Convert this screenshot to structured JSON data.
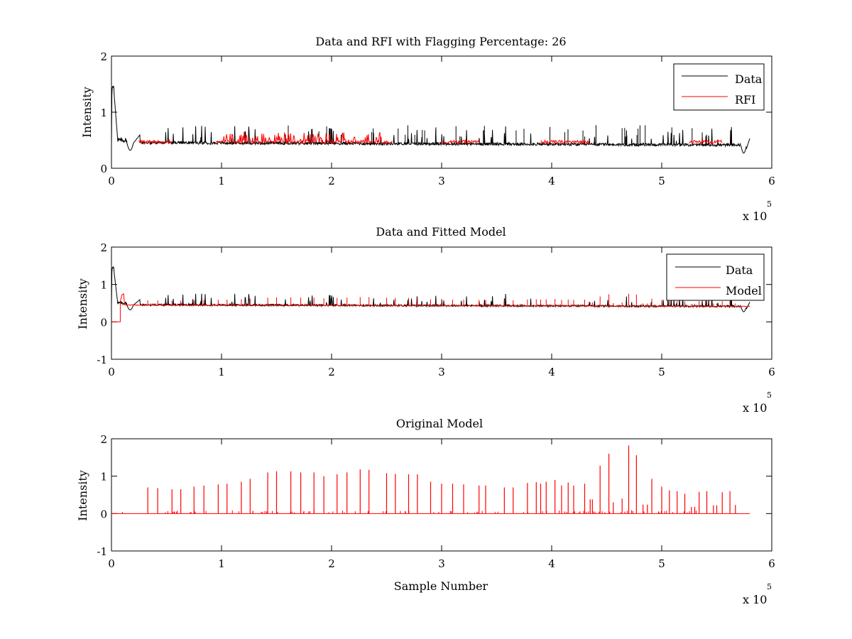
{
  "figure": {
    "background": "#ffffff",
    "axes_color": "#000000"
  },
  "chart_data": [
    {
      "type": "line",
      "title": "Data and RFI with Flagging Percentage: 26",
      "xlabel": "",
      "ylabel": "Intensity",
      "xlim": [
        0,
        6
      ],
      "ylim": [
        0,
        2
      ],
      "xticks": [
        0,
        1,
        2,
        3,
        4,
        5,
        6
      ],
      "yticks": [
        0,
        1,
        2
      ],
      "x_exponent": {
        "base": "x 10",
        "power": "5"
      },
      "legend": {
        "location": "top-right",
        "entries": [
          "Data",
          "RFI"
        ]
      },
      "series": [
        {
          "name": "Data",
          "color": "#000000",
          "style": "noisy baseline ~0.45 with initial peak 1.55 near x=0.01, dip to 0.33 near x=0.18, drop to 0.27 near x=5.75, end 0.55 at x=5.8"
        },
        {
          "name": "RFI",
          "color": "#ff0000",
          "segments": [
            [
              0.25,
              0.55
            ],
            [
              0.95,
              2.55
            ],
            [
              3.0,
              3.35
            ],
            [
              3.9,
              4.35
            ],
            [
              5.25,
              5.55
            ]
          ]
        }
      ]
    },
    {
      "type": "line",
      "title": "Data and Fitted Model",
      "xlabel": "",
      "ylabel": "Intensity",
      "xlim": [
        0,
        6
      ],
      "ylim": [
        -1,
        2
      ],
      "xticks": [
        0,
        1,
        2,
        3,
        4,
        5,
        6
      ],
      "yticks": [
        -1,
        0,
        1,
        2
      ],
      "x_exponent": {
        "base": "x 10",
        "power": "5"
      },
      "legend": {
        "location": "top-right",
        "entries": [
          "Data",
          "Model"
        ]
      },
      "series": [
        {
          "name": "Data",
          "color": "#000000"
        },
        {
          "name": "Model",
          "color": "#ff0000",
          "style": "0 until x=0.08, bump to 0.75 near x=0.1, then ~0.45 with spikes"
        }
      ]
    },
    {
      "type": "line",
      "title": "Original Model",
      "xlabel": "Sample Number",
      "ylabel": "Intensity",
      "xlim": [
        0,
        6
      ],
      "ylim": [
        -1,
        2
      ],
      "xticks": [
        0,
        1,
        2,
        3,
        4,
        5,
        6
      ],
      "yticks": [
        -1,
        0,
        1,
        2
      ],
      "x_exponent": {
        "base": "x 10",
        "power": "5"
      },
      "series": [
        {
          "name": "",
          "color": "#ff0000",
          "baseline": 0,
          "x_end": 5.8,
          "spikes": [
            [
              0.1,
              0.04
            ],
            [
              0.33,
              0.7
            ],
            [
              0.42,
              0.68
            ],
            [
              0.55,
              0.65
            ],
            [
              0.63,
              0.65
            ],
            [
              0.75,
              0.72
            ],
            [
              0.84,
              0.75
            ],
            [
              0.97,
              0.78
            ],
            [
              1.05,
              0.8
            ],
            [
              1.18,
              0.85
            ],
            [
              1.26,
              0.93
            ],
            [
              1.42,
              1.1
            ],
            [
              1.5,
              1.13
            ],
            [
              1.63,
              1.13
            ],
            [
              1.72,
              1.1
            ],
            [
              1.84,
              1.1
            ],
            [
              1.93,
              1.0
            ],
            [
              2.05,
              1.05
            ],
            [
              2.14,
              1.1
            ],
            [
              2.26,
              1.18
            ],
            [
              2.34,
              1.17
            ],
            [
              2.5,
              1.08
            ],
            [
              2.58,
              1.06
            ],
            [
              2.7,
              1.05
            ],
            [
              2.78,
              1.05
            ],
            [
              2.9,
              0.85
            ],
            [
              3.0,
              0.8
            ],
            [
              3.1,
              0.8
            ],
            [
              3.2,
              0.78
            ],
            [
              3.34,
              0.75
            ],
            [
              3.4,
              0.75
            ],
            [
              3.57,
              0.7
            ],
            [
              3.65,
              0.7
            ],
            [
              3.78,
              0.82
            ],
            [
              3.86,
              0.84
            ],
            [
              3.9,
              0.8
            ],
            [
              3.95,
              0.85
            ],
            [
              4.03,
              0.9
            ],
            [
              4.09,
              0.75
            ],
            [
              4.15,
              0.83
            ],
            [
              4.2,
              0.75
            ],
            [
              4.3,
              0.8
            ],
            [
              4.35,
              0.38
            ],
            [
              4.37,
              0.38
            ],
            [
              4.44,
              1.28
            ],
            [
              4.52,
              1.6
            ],
            [
              4.56,
              0.3
            ],
            [
              4.64,
              0.4
            ],
            [
              4.7,
              1.82
            ],
            [
              4.77,
              1.56
            ],
            [
              4.83,
              0.24
            ],
            [
              4.87,
              0.24
            ],
            [
              4.91,
              0.93
            ],
            [
              5.0,
              0.72
            ],
            [
              5.07,
              0.62
            ],
            [
              5.14,
              0.6
            ],
            [
              5.21,
              0.53
            ],
            [
              5.27,
              0.18
            ],
            [
              5.3,
              0.18
            ],
            [
              5.34,
              0.58
            ],
            [
              5.41,
              0.6
            ],
            [
              5.47,
              0.22
            ],
            [
              5.5,
              0.22
            ],
            [
              5.55,
              0.57
            ],
            [
              5.62,
              0.6
            ],
            [
              5.67,
              0.23
            ]
          ]
        }
      ]
    }
  ]
}
